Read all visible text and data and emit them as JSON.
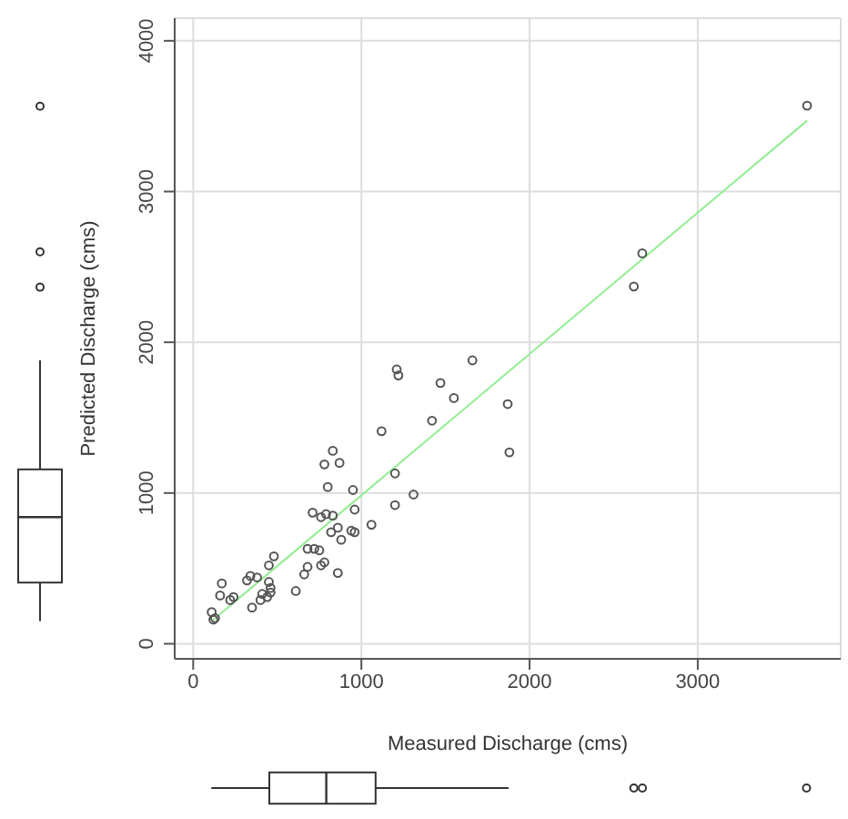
{
  "chart_data": {
    "type": "scatter",
    "xlabel": "Measured Discharge (cms)",
    "ylabel": "Predicted Discharge (cms)",
    "xlim": [
      -110,
      3850
    ],
    "ylim": [
      -100,
      4150
    ],
    "xticks": [
      0,
      1000,
      2000,
      3000
    ],
    "yticks": [
      0,
      1000,
      2000,
      3000,
      4000
    ],
    "grid": true,
    "marker": "circle",
    "series": [
      {
        "type": "scatter",
        "color": "#555555",
        "x": [
          130,
          110,
          120,
          160,
          170,
          220,
          240,
          320,
          340,
          380,
          350,
          400,
          410,
          440,
          460,
          460,
          450,
          450,
          480,
          610,
          660,
          680,
          680,
          720,
          750,
          760,
          780,
          860,
          710,
          760,
          790,
          830,
          820,
          860,
          880,
          940,
          960,
          960,
          950,
          800,
          780,
          830,
          870,
          1060,
          1120,
          1200,
          1200,
          1310,
          1210,
          1220,
          1420,
          1470,
          1550,
          1660,
          1870,
          1880,
          2620,
          2670,
          3650
        ],
        "values": [
          170,
          210,
          160,
          320,
          400,
          290,
          310,
          420,
          450,
          440,
          240,
          290,
          330,
          310,
          340,
          370,
          410,
          520,
          580,
          350,
          460,
          510,
          630,
          630,
          620,
          520,
          540,
          470,
          870,
          840,
          860,
          850,
          740,
          770,
          690,
          750,
          740,
          890,
          1020,
          1040,
          1190,
          1280,
          1200,
          790,
          1410,
          1130,
          920,
          990,
          1820,
          1780,
          1480,
          1730,
          1630,
          1880,
          1590,
          1270,
          2370,
          2590,
          3570
        ]
      },
      {
        "type": "line",
        "color": "#90ee90",
        "marker": "none",
        "x": [
          110,
          3650
        ],
        "values": [
          150,
          3470
        ]
      }
    ]
  }
}
